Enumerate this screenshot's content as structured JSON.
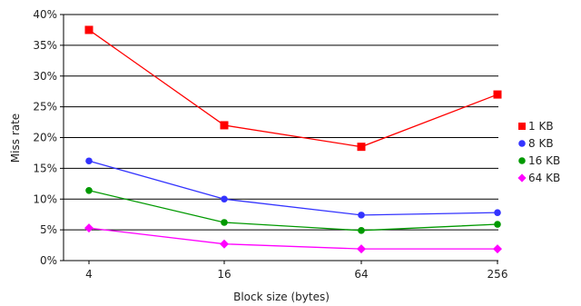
{
  "chart_data": {
    "type": "line",
    "title": "",
    "xlabel": "Block size (bytes)",
    "ylabel": "Miss rate",
    "categories": [
      "4",
      "16",
      "64",
      "256"
    ],
    "y_ticks": [
      "0%",
      "5%",
      "10%",
      "15%",
      "20%",
      "25%",
      "30%",
      "35%",
      "40%"
    ],
    "ylim": [
      0,
      40
    ],
    "grid": "horizontal",
    "legend_position": "right",
    "series": [
      {
        "name": "1 KB",
        "color": "#ff0000",
        "marker": "square",
        "values": [
          37.5,
          22.0,
          18.5,
          27.0
        ]
      },
      {
        "name": "8 KB",
        "color": "#3333ff",
        "marker": "circle",
        "values": [
          16.2,
          10.0,
          7.4,
          7.8
        ]
      },
      {
        "name": "16 KB",
        "color": "#009900",
        "marker": "circle",
        "values": [
          11.4,
          6.2,
          4.9,
          5.9
        ]
      },
      {
        "name": "64 KB",
        "color": "#ff00ff",
        "marker": "diamond",
        "values": [
          5.3,
          2.7,
          1.9,
          1.9
        ]
      }
    ]
  }
}
